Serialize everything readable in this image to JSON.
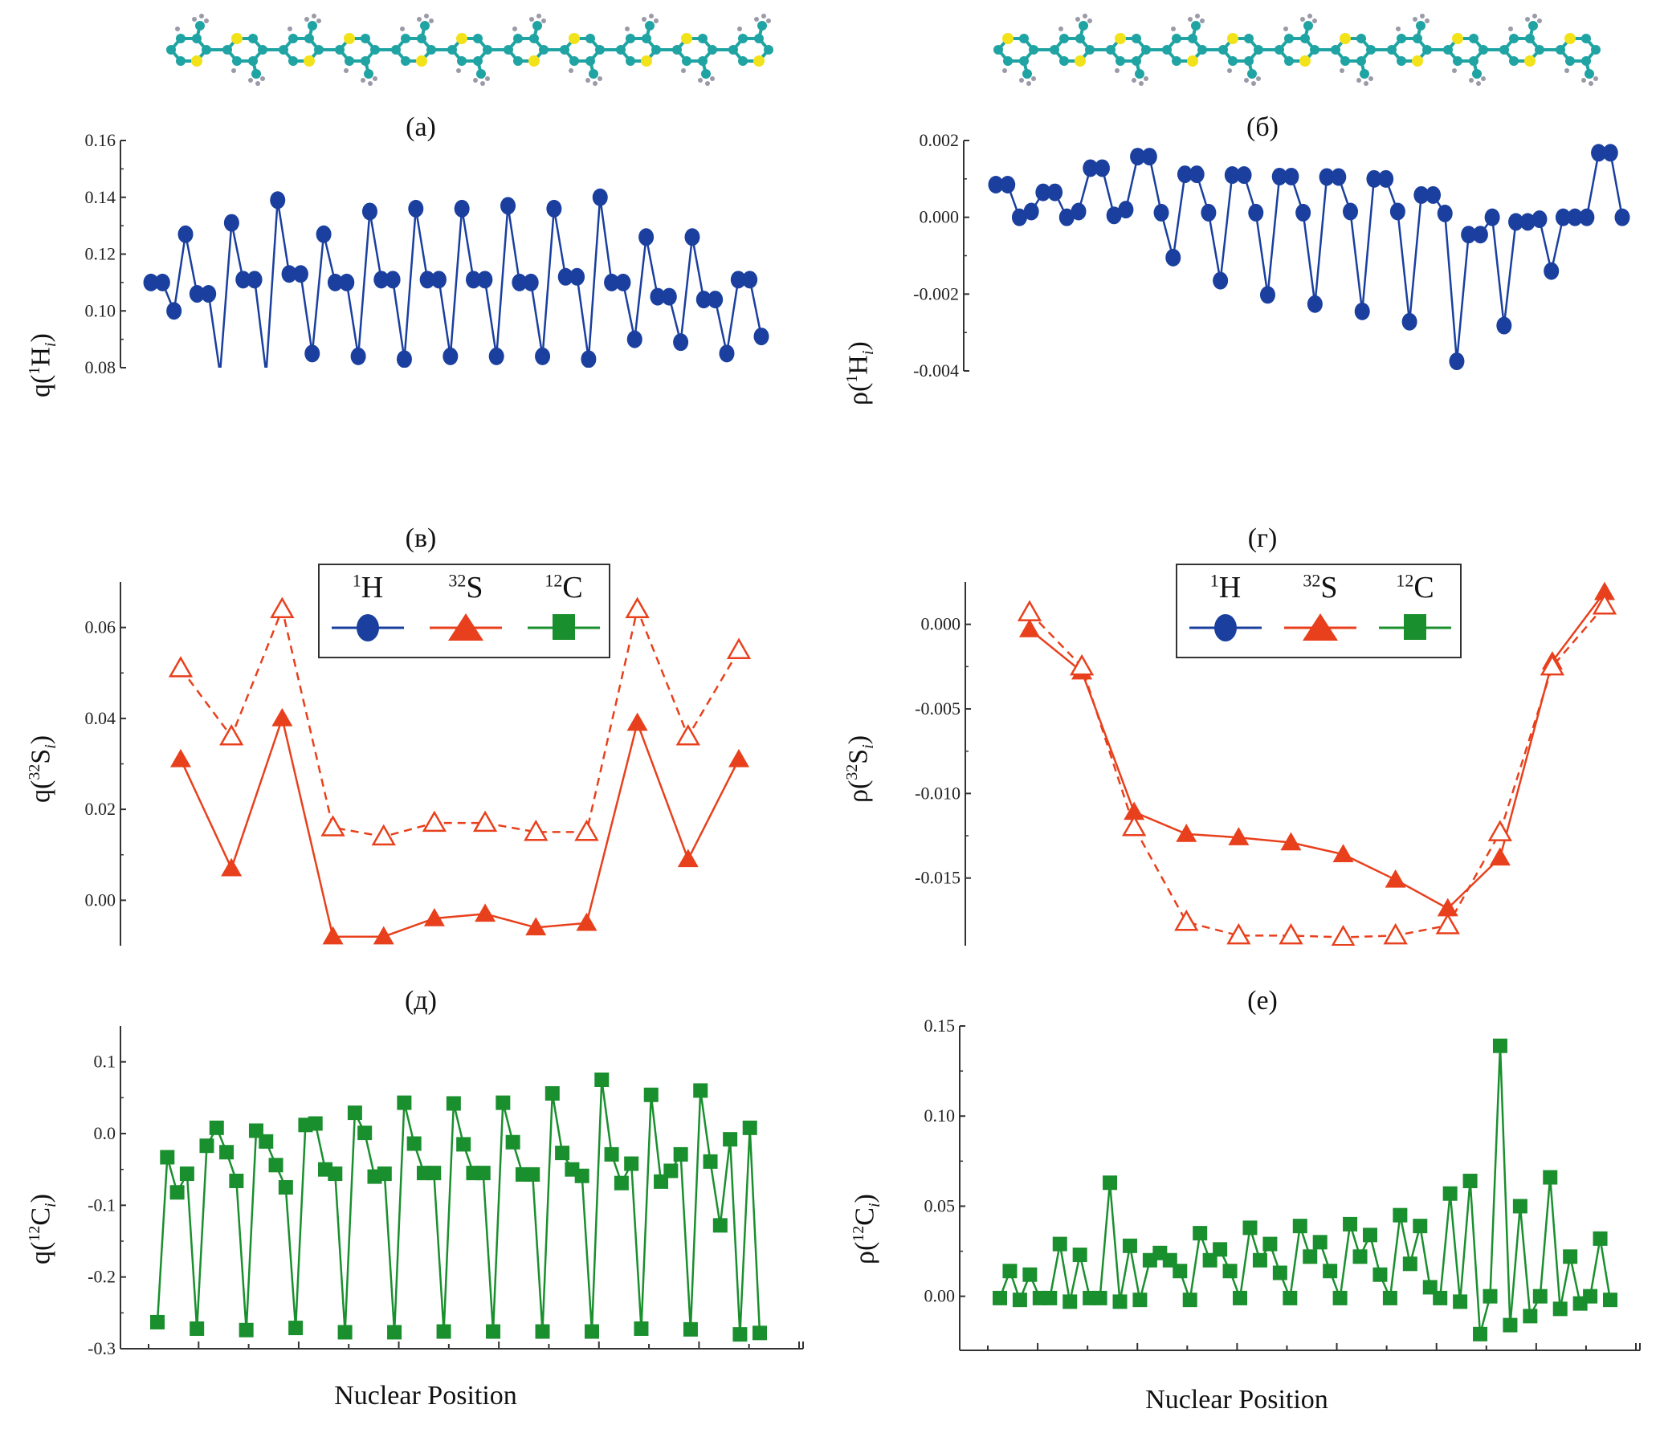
{
  "figure": {
    "panel_labels": [
      "(а)",
      "(б)",
      "(в)",
      "(г)",
      "(д)",
      "(е)"
    ],
    "xlabel": "Nuclear Position",
    "legend": {
      "entries": [
        {
          "sup": "1",
          "name": "H",
          "marker": "circle",
          "color": "#1a3f9e"
        },
        {
          "sup": "32",
          "name": "S",
          "marker": "triangle",
          "color": "#e8401c"
        },
        {
          "sup": "12",
          "name": "C",
          "marker": "square",
          "color": "#1a8f2e"
        }
      ]
    },
    "colors": {
      "H": "#1a3f9e",
      "S": "#e8401c",
      "C": "#1a8f2e",
      "axis": "#333333",
      "sulfur_atom": "#f2e21a",
      "carbon_atom": "#1fa3a3",
      "hydrogen_atom": "#9a9aa8"
    }
  },
  "chart_data": [
    {
      "id": "a",
      "type": "line",
      "title": "(а)",
      "ylabel_prefix": "q(",
      "ylabel_sup": "1",
      "ylabel_main": "H",
      "ylabel_sub": "i",
      "ylabel_suffix": ")",
      "xlabel": "",
      "ylim": [
        0.08,
        0.16
      ],
      "yticks": [
        0.08,
        0.1,
        0.12,
        0.14,
        0.16
      ],
      "ytick_labels": [
        "0.08",
        "0.10",
        "0.12",
        "0.14",
        "0.16"
      ],
      "grid": false,
      "series": [
        {
          "name": "1H",
          "marker": "circle",
          "color": "#1a3f9e",
          "style": "solid",
          "values": [
            0.11,
            0.11,
            0.1,
            0.127,
            0.106,
            0.106,
            0.078,
            0.131,
            0.111,
            0.111,
            0.078,
            0.139,
            0.113,
            0.113,
            0.085,
            0.127,
            0.11,
            0.11,
            0.084,
            0.135,
            0.111,
            0.111,
            0.083,
            0.136,
            0.111,
            0.111,
            0.084,
            0.136,
            0.111,
            0.111,
            0.084,
            0.137,
            0.11,
            0.11,
            0.084,
            0.136,
            0.112,
            0.112,
            0.083,
            0.14,
            0.11,
            0.11,
            0.09,
            0.126,
            0.105,
            0.105,
            0.089,
            0.126,
            0.104,
            0.104,
            0.085,
            0.111,
            0.111,
            0.091
          ],
          "hidden_below_axis": [
            6,
            10
          ]
        }
      ]
    },
    {
      "id": "b",
      "type": "line",
      "title": "(б)",
      "ylabel_prefix": "ρ(",
      "ylabel_sup": "1",
      "ylabel_main": "H",
      "ylabel_sub": "i",
      "ylabel_suffix": ")",
      "xlabel": "",
      "ylim": [
        -0.004,
        0.002
      ],
      "yticks": [
        -0.004,
        -0.002,
        0.0,
        0.002
      ],
      "ytick_labels": [
        "-0.004",
        "-0.002",
        "0.000",
        "0.002"
      ],
      "grid": false,
      "series": [
        {
          "name": "1H",
          "marker": "circle",
          "color": "#1a3f9e",
          "style": "solid",
          "values": [
            0.00085,
            0.00085,
            0.0,
            0.00015,
            0.00065,
            0.00065,
            0.0,
            0.00015,
            0.00128,
            0.00128,
            5e-05,
            0.0002,
            0.00158,
            0.00158,
            0.00012,
            -0.00105,
            0.00112,
            0.00112,
            0.00012,
            -0.00165,
            0.0011,
            0.0011,
            0.00012,
            -0.00202,
            0.00106,
            0.00106,
            0.00012,
            -0.00226,
            0.00105,
            0.00105,
            0.00015,
            -0.00245,
            0.001,
            0.001,
            0.00015,
            -0.00272,
            0.00058,
            0.00058,
            0.0001,
            -0.00375,
            -0.00045,
            -0.00045,
            0.0,
            -0.00282,
            -0.00012,
            -0.00012,
            -5e-05,
            -0.0014,
            0.0,
            0.0,
            0.0,
            0.00168,
            0.00168,
            0.0
          ]
        }
      ]
    },
    {
      "id": "c",
      "type": "line",
      "title": "(в)",
      "ylabel_prefix": "q(",
      "ylabel_sup": "32",
      "ylabel_main": "S",
      "ylabel_sub": "i",
      "ylabel_suffix": ")",
      "xlabel": "",
      "ylim": [
        -0.01,
        0.07
      ],
      "yticks": [
        0.0,
        0.02,
        0.04,
        0.06
      ],
      "ytick_labels": [
        "0.00",
        "0.02",
        "0.04",
        "0.06"
      ],
      "grid": false,
      "legend": "top-center",
      "series": [
        {
          "name": "32S (filled)",
          "marker": "triangle",
          "color": "#e8401c",
          "style": "solid",
          "values": [
            0.031,
            0.007,
            0.04,
            -0.008,
            -0.008,
            -0.004,
            -0.003,
            -0.006,
            -0.005,
            0.039,
            0.009,
            0.031
          ]
        },
        {
          "name": "32S (open)",
          "marker": "triangle-open",
          "color": "#e8401c",
          "style": "dashed",
          "values": [
            0.051,
            0.036,
            0.064,
            0.016,
            0.014,
            0.017,
            0.017,
            0.015,
            0.015,
            0.064,
            0.036,
            0.055
          ]
        }
      ]
    },
    {
      "id": "d",
      "type": "line",
      "title": "(г)",
      "ylabel_prefix": "ρ(",
      "ylabel_sup": "32",
      "ylabel_main": "S",
      "ylabel_sub": "i",
      "ylabel_suffix": ")",
      "xlabel": "",
      "ylim": [
        -0.019,
        0.0025
      ],
      "yticks": [
        -0.015,
        -0.01,
        -0.005,
        0.0
      ],
      "ytick_labels": [
        "-0.015",
        "-0.010",
        "-0.005",
        "0.000"
      ],
      "grid": false,
      "legend": "top-center",
      "series": [
        {
          "name": "32S (filled)",
          "marker": "triangle",
          "color": "#e8401c",
          "style": "solid",
          "values": [
            -0.0003,
            -0.0028,
            -0.0111,
            -0.0124,
            -0.0126,
            -0.0129,
            -0.0136,
            -0.0151,
            -0.0168,
            -0.0138,
            -0.0022,
            0.0019
          ]
        },
        {
          "name": "32S (open)",
          "marker": "triangle-open",
          "color": "#e8401c",
          "style": "dashed",
          "values": [
            0.0007,
            -0.0025,
            -0.012,
            -0.0176,
            -0.0184,
            -0.0184,
            -0.0185,
            -0.0184,
            -0.0178,
            -0.0123,
            -0.0025,
            0.0011
          ]
        }
      ]
    },
    {
      "id": "e",
      "type": "line",
      "title": "(д)",
      "ylabel_prefix": "q(",
      "ylabel_sup": "12",
      "ylabel_main": "C",
      "ylabel_sub": "i",
      "ylabel_suffix": ")",
      "xlabel": "Nuclear Position",
      "ylim": [
        -0.3,
        0.15
      ],
      "yticks": [
        -0.3,
        -0.2,
        -0.1,
        0.0,
        0.1
      ],
      "ytick_labels": [
        "-0.3",
        "-0.2",
        "-0.1",
        "0.0",
        "0.1"
      ],
      "grid": false,
      "series": [
        {
          "name": "12C",
          "marker": "square",
          "color": "#1a8f2e",
          "style": "solid",
          "values": [
            -0.263,
            -0.033,
            -0.082,
            -0.056,
            -0.272,
            -0.017,
            0.008,
            -0.026,
            -0.066,
            -0.274,
            0.004,
            -0.011,
            -0.044,
            -0.075,
            -0.271,
            0.012,
            0.014,
            -0.05,
            -0.056,
            -0.277,
            0.029,
            0.001,
            -0.06,
            -0.056,
            -0.277,
            0.043,
            -0.014,
            -0.055,
            -0.055,
            -0.276,
            0.042,
            -0.015,
            -0.055,
            -0.055,
            -0.276,
            0.043,
            -0.012,
            -0.057,
            -0.057,
            -0.276,
            0.056,
            -0.027,
            -0.05,
            -0.059,
            -0.276,
            0.075,
            -0.029,
            -0.069,
            -0.042,
            -0.272,
            0.054,
            -0.067,
            -0.052,
            -0.029,
            -0.273,
            0.06,
            -0.039,
            -0.128,
            -0.008,
            -0.28,
            0.008,
            -0.278
          ]
        }
      ]
    },
    {
      "id": "f",
      "type": "line",
      "title": "(е)",
      "ylabel_prefix": "ρ(",
      "ylabel_sup": "12",
      "ylabel_main": "C",
      "ylabel_sub": "i",
      "ylabel_suffix": ")",
      "xlabel": "Nuclear Position",
      "ylim": [
        -0.03,
        0.15
      ],
      "yticks": [
        0.0,
        0.05,
        0.1,
        0.15
      ],
      "ytick_labels": [
        "0.00",
        "0.05",
        "0.10",
        "0.15"
      ],
      "grid": false,
      "series": [
        {
          "name": "12C",
          "marker": "square",
          "color": "#1a8f2e",
          "style": "solid",
          "values": [
            -0.001,
            0.014,
            -0.002,
            0.012,
            -0.001,
            -0.001,
            0.029,
            -0.003,
            0.023,
            -0.001,
            -0.001,
            0.063,
            -0.003,
            0.028,
            -0.002,
            0.02,
            0.024,
            0.02,
            0.014,
            -0.002,
            0.035,
            0.02,
            0.026,
            0.014,
            -0.001,
            0.038,
            0.02,
            0.029,
            0.013,
            -0.001,
            0.039,
            0.022,
            0.03,
            0.014,
            -0.001,
            0.04,
            0.022,
            0.034,
            0.012,
            -0.001,
            0.045,
            0.018,
            0.039,
            0.005,
            -0.001,
            0.057,
            -0.003,
            0.064,
            -0.021,
            0.0,
            0.139,
            -0.016,
            0.05,
            -0.011,
            0.0,
            0.066,
            -0.007,
            0.022,
            -0.004,
            0.0,
            0.032,
            -0.002
          ]
        }
      ]
    }
  ]
}
